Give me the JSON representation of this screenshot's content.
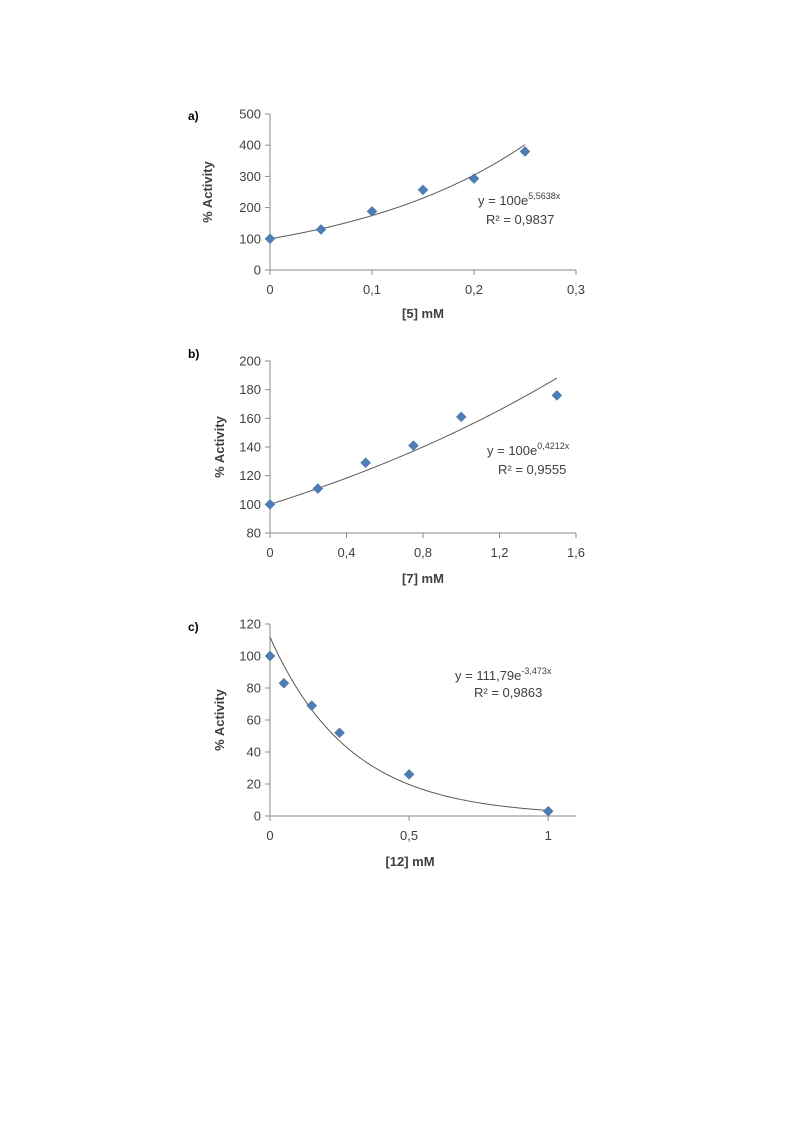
{
  "chart_data": [
    {
      "type": "scatter",
      "panel_label": "a)",
      "xlabel": "[5] mM",
      "ylabel": "% Activity",
      "xlim": [
        0,
        0.3
      ],
      "ylim": [
        0,
        500
      ],
      "x_ticks": [
        "0",
        "0,1",
        "0,2",
        "0,3"
      ],
      "x_tick_values": [
        0,
        0.1,
        0.2,
        0.3
      ],
      "y_ticks": [
        "0",
        "100",
        "200",
        "300",
        "400",
        "500"
      ],
      "y_tick_values": [
        0,
        100,
        200,
        300,
        400,
        500
      ],
      "points": [
        {
          "x": 0,
          "y": 100
        },
        {
          "x": 0.05,
          "y": 130
        },
        {
          "x": 0.1,
          "y": 188
        },
        {
          "x": 0.15,
          "y": 257
        },
        {
          "x": 0.2,
          "y": 293
        },
        {
          "x": 0.25,
          "y": 380
        }
      ],
      "trendline": {
        "a": 100,
        "b": 5.5638,
        "x_range": [
          0,
          0.25
        ]
      },
      "equation": {
        "prefix": "y = 100e",
        "exponent": "5,5638x"
      },
      "r_squared": "R² = 0,9837",
      "grid": false,
      "color": "#4a7ebb"
    },
    {
      "type": "scatter",
      "panel_label": "b)",
      "xlabel": "[7] mM",
      "ylabel": "% Activity",
      "xlim": [
        0,
        1.6
      ],
      "ylim": [
        80,
        200
      ],
      "x_ticks": [
        "0",
        "0,4",
        "0,8",
        "1,2",
        "1,6"
      ],
      "x_tick_values": [
        0,
        0.4,
        0.8,
        1.2,
        1.6
      ],
      "y_ticks": [
        "80",
        "100",
        "120",
        "140",
        "160",
        "180",
        "200"
      ],
      "y_tick_values": [
        80,
        100,
        120,
        140,
        160,
        180,
        200
      ],
      "points": [
        {
          "x": 0,
          "y": 100
        },
        {
          "x": 0.25,
          "y": 111
        },
        {
          "x": 0.5,
          "y": 129
        },
        {
          "x": 0.75,
          "y": 141
        },
        {
          "x": 1.0,
          "y": 161
        },
        {
          "x": 1.5,
          "y": 176
        }
      ],
      "trendline": {
        "a": 100,
        "b": 0.4212,
        "x_range": [
          0,
          1.5
        ]
      },
      "equation": {
        "prefix": "y = 100e",
        "exponent": "0,4212x"
      },
      "r_squared": "R² = 0,9555",
      "grid": false,
      "color": "#4a7ebb"
    },
    {
      "type": "scatter",
      "panel_label": "c)",
      "xlabel": "[12] mM",
      "ylabel": "% Activity",
      "xlim": [
        0,
        1.1
      ],
      "ylim": [
        0,
        120
      ],
      "x_ticks": [
        "0",
        "0,5",
        "1"
      ],
      "x_tick_values": [
        0,
        0.5,
        1
      ],
      "y_ticks": [
        "0",
        "20",
        "40",
        "60",
        "80",
        "100",
        "120"
      ],
      "y_tick_values": [
        0,
        20,
        40,
        60,
        80,
        100,
        120
      ],
      "points": [
        {
          "x": 0,
          "y": 100
        },
        {
          "x": 0.05,
          "y": 83
        },
        {
          "x": 0.15,
          "y": 69
        },
        {
          "x": 0.25,
          "y": 52
        },
        {
          "x": 0.5,
          "y": 26
        },
        {
          "x": 1.0,
          "y": 3
        }
      ],
      "trendline": {
        "a": 111.79,
        "b": -3.473,
        "x_range": [
          0,
          1
        ]
      },
      "equation": {
        "prefix": "y = 111,79e",
        "exponent": "-3,473x"
      },
      "r_squared": "R² = 0,9863",
      "grid": false,
      "color": "#4a7ebb"
    }
  ]
}
